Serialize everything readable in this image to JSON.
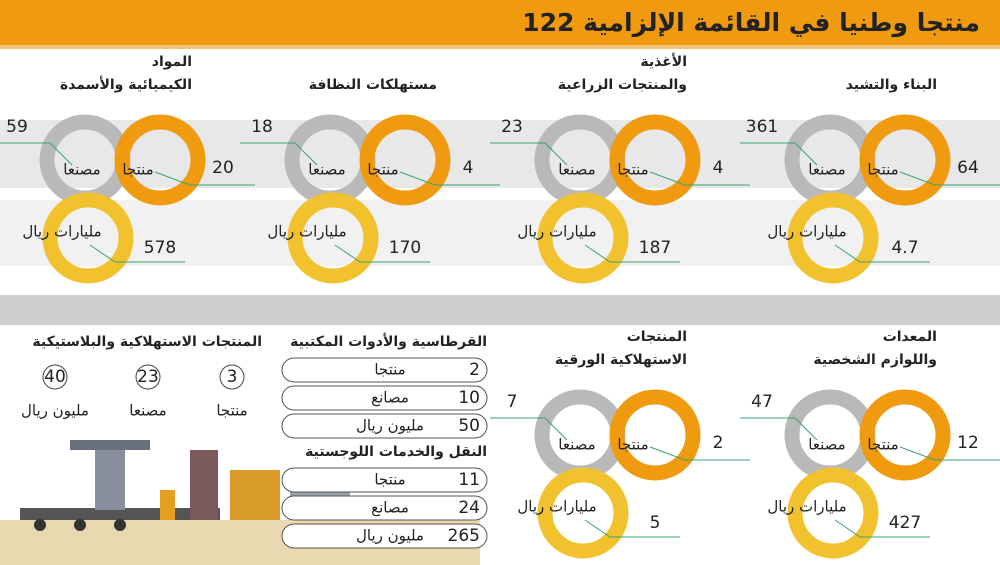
{
  "header": {
    "title": "122 منتجا وطنيا في القائمة الإلزامية"
  },
  "sectors": [
    {
      "title": [
        "البناء والتشيد"
      ],
      "products": {
        "value": 64,
        "label": "منتجا"
      },
      "factories": {
        "value": 361,
        "label": "مصنعا"
      },
      "sales": {
        "value": 4.7,
        "label": "مليارات ريال"
      }
    },
    {
      "title": [
        "الأغذية",
        "والمنتجات الزراعية"
      ],
      "products": {
        "value": 4,
        "label": "منتجا"
      },
      "factories": {
        "value": 23,
        "label": "مصنعا"
      },
      "sales": {
        "value": 187,
        "label": "مليارات ريال"
      }
    },
    {
      "title": [
        "مستهلكات النظافة"
      ],
      "products": {
        "value": 4,
        "label": "منتجا"
      },
      "factories": {
        "value": 18,
        "label": "مصنعا"
      },
      "sales": {
        "value": 170,
        "label": "مليارات ريال"
      }
    },
    {
      "title": [
        "المواد",
        "الكيميائية والأسمدة"
      ],
      "products": {
        "value": 20,
        "label": "منتجا"
      },
      "factories": {
        "value": 59,
        "label": "مصنعا"
      },
      "sales": {
        "value": 578,
        "label": "مليارات ريال"
      }
    },
    {
      "title": [
        "المعدات",
        "واللوازم الشخصية"
      ],
      "products": {
        "value": 12,
        "label": "منتجا"
      },
      "factories": {
        "value": 47,
        "label": "مصنعا"
      },
      "sales": {
        "value": 427,
        "label": "مليارات ريال"
      }
    },
    {
      "title": [
        "المنتجات",
        "الاستهلاكية الورقية"
      ],
      "products": {
        "value": 2,
        "label": "منتجا"
      },
      "factories": {
        "value": 7,
        "label": "مصنعا"
      },
      "sales": {
        "value": 5,
        "label": "مليارات ريال"
      }
    }
  ],
  "lists": [
    {
      "title": "القرطاسية والأدوات المكتبية",
      "rows": [
        {
          "value": 2,
          "label": "منتجا"
        },
        {
          "value": 10,
          "label": "مصانع"
        },
        {
          "value": 50,
          "label": "مليون ريال"
        }
      ]
    },
    {
      "title": "النقل والخدمات اللوجستية",
      "rows": [
        {
          "value": 11,
          "label": "منتجا"
        },
        {
          "value": 24,
          "label": "مصانع"
        },
        {
          "value": 265,
          "label": "مليون ريال"
        }
      ]
    }
  ],
  "summary": {
    "title": "المنتجات الاستهلاكية والبلاستيكية",
    "items": [
      {
        "value": 3,
        "label": "منتجا"
      },
      {
        "value": 23,
        "label": "مصنعا"
      },
      {
        "value": 40,
        "label": "مليون ريال"
      }
    ]
  }
}
